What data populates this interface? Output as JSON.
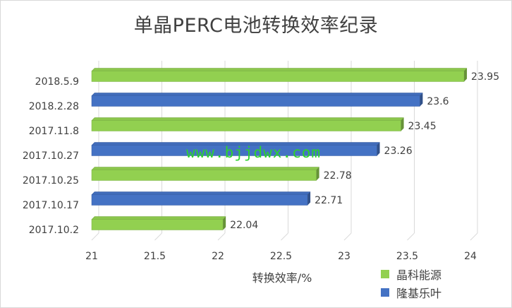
{
  "chart_data": {
    "type": "bar",
    "orientation": "horizontal",
    "title": "单晶PERC电池转换效率纪录",
    "xlabel": "转换效率/%",
    "ylabel": "",
    "xlim": [
      21,
      24
    ],
    "x_ticks": [
      "21",
      "21.5",
      "22",
      "22.5",
      "23",
      "23.5",
      "24"
    ],
    "grid": true,
    "legend_position": "bottom-right",
    "categories": [
      "2018.5.9",
      "2018.2.28",
      "2017.11.8",
      "2017.10.27",
      "2017.10.25",
      "2017.10.17",
      "2017.10.2"
    ],
    "values": [
      23.95,
      23.6,
      23.45,
      23.26,
      22.78,
      22.71,
      22.04
    ],
    "value_labels": [
      "23.95",
      "23.6",
      "23.45",
      "23.26",
      "22.78",
      "22.71",
      "22.04"
    ],
    "bar_series": [
      "晶科能源",
      "隆基乐叶",
      "晶科能源",
      "隆基乐叶",
      "晶科能源",
      "隆基乐叶",
      "晶科能源"
    ],
    "series": [
      {
        "name": "晶科能源",
        "color": "#92d050"
      },
      {
        "name": "隆基乐叶",
        "color": "#4472c4"
      }
    ]
  },
  "watermark": "www.bjjdwx.com"
}
